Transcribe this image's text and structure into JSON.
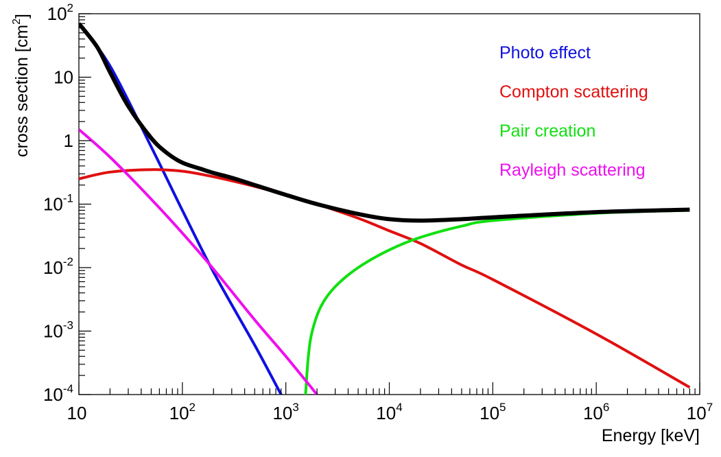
{
  "chart_data": {
    "type": "line",
    "title": "",
    "xlabel": "Energy [keV]",
    "ylabel": "cross section [cm",
    "ylabel_sup": "2",
    "ylabel_close": "]",
    "x_scale": "log",
    "y_scale": "log",
    "xlim": [
      10,
      10000000
    ],
    "ylim": [
      0.0001,
      100
    ],
    "grid": false,
    "legend_position": "top-right",
    "x_ticks": [
      {
        "base": "10",
        "exp": ""
      },
      {
        "base": "10",
        "exp": "2"
      },
      {
        "base": "10",
        "exp": "3"
      },
      {
        "base": "10",
        "exp": "4"
      },
      {
        "base": "10",
        "exp": "5"
      },
      {
        "base": "10",
        "exp": "6"
      },
      {
        "base": "10",
        "exp": "7"
      }
    ],
    "y_ticks": [
      {
        "base": "10",
        "exp": "-4"
      },
      {
        "base": "10",
        "exp": "-3"
      },
      {
        "base": "10",
        "exp": "-2"
      },
      {
        "base": "10",
        "exp": "-1"
      },
      {
        "base": "1",
        "exp": ""
      },
      {
        "base": "10",
        "exp": ""
      },
      {
        "base": "10",
        "exp": "2"
      }
    ],
    "series": [
      {
        "name": "Photo effect",
        "color": "#1010e0",
        "x": [
          10,
          20,
          50,
          100,
          200,
          500,
          900
        ],
        "y": [
          70,
          15,
          0.8,
          0.08,
          0.0085,
          0.0006,
          0.0001
        ]
      },
      {
        "name": "Compton scattering",
        "color": "#e01010",
        "x": [
          10,
          20,
          50,
          100,
          200,
          500,
          1000,
          2000,
          5000,
          10000,
          20000,
          50000,
          100000,
          1000000,
          8000000
        ],
        "y": [
          0.25,
          0.32,
          0.35,
          0.33,
          0.27,
          0.19,
          0.14,
          0.1,
          0.06,
          0.038,
          0.024,
          0.011,
          0.0065,
          0.0009,
          0.00013
        ]
      },
      {
        "name": "Pair creation",
        "color": "#10e010",
        "x": [
          1550,
          1650,
          1800,
          2200,
          3000,
          5000,
          10000,
          20000,
          50000,
          100000,
          1000000,
          8000000
        ],
        "y": [
          0.0001,
          0.0004,
          0.001,
          0.0025,
          0.005,
          0.01,
          0.019,
          0.03,
          0.045,
          0.055,
          0.072,
          0.08
        ]
      },
      {
        "name": "Rayleigh scattering",
        "color": "#ee10ee",
        "x": [
          10,
          20,
          50,
          100,
          200,
          500,
          1000,
          2000
        ],
        "y": [
          1.5,
          0.55,
          0.12,
          0.035,
          0.0095,
          0.0015,
          0.0004,
          0.0001
        ]
      },
      {
        "name": "",
        "color": "#000000",
        "x": [
          10,
          15,
          20,
          30,
          50,
          70,
          100,
          150,
          200,
          300,
          500,
          1000,
          2000,
          5000,
          10000,
          20000,
          50000,
          100000,
          1000000,
          8000000
        ],
        "y": [
          70,
          30,
          12,
          3.5,
          1.1,
          0.65,
          0.45,
          0.36,
          0.31,
          0.26,
          0.2,
          0.14,
          0.1,
          0.07,
          0.058,
          0.055,
          0.058,
          0.062,
          0.075,
          0.082
        ]
      }
    ]
  }
}
